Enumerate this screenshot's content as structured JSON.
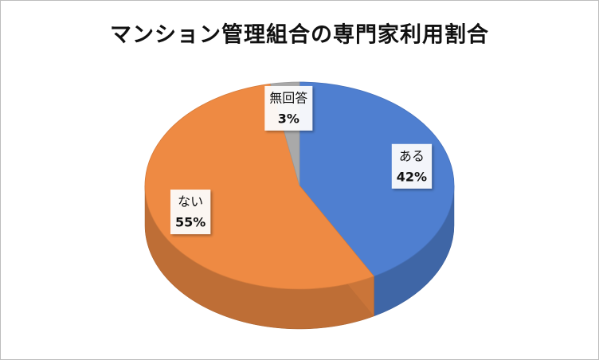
{
  "chart_data": {
    "type": "pie",
    "title": "マンション管理組合の専門家利用割合",
    "categories": [
      "ある",
      "ない",
      "無回答"
    ],
    "values": [
      42,
      55,
      3
    ],
    "value_labels": [
      "42%",
      "55%",
      "3%"
    ],
    "colors": [
      "#4f7fd0",
      "#ee8a43",
      "#a9a9a9"
    ]
  }
}
